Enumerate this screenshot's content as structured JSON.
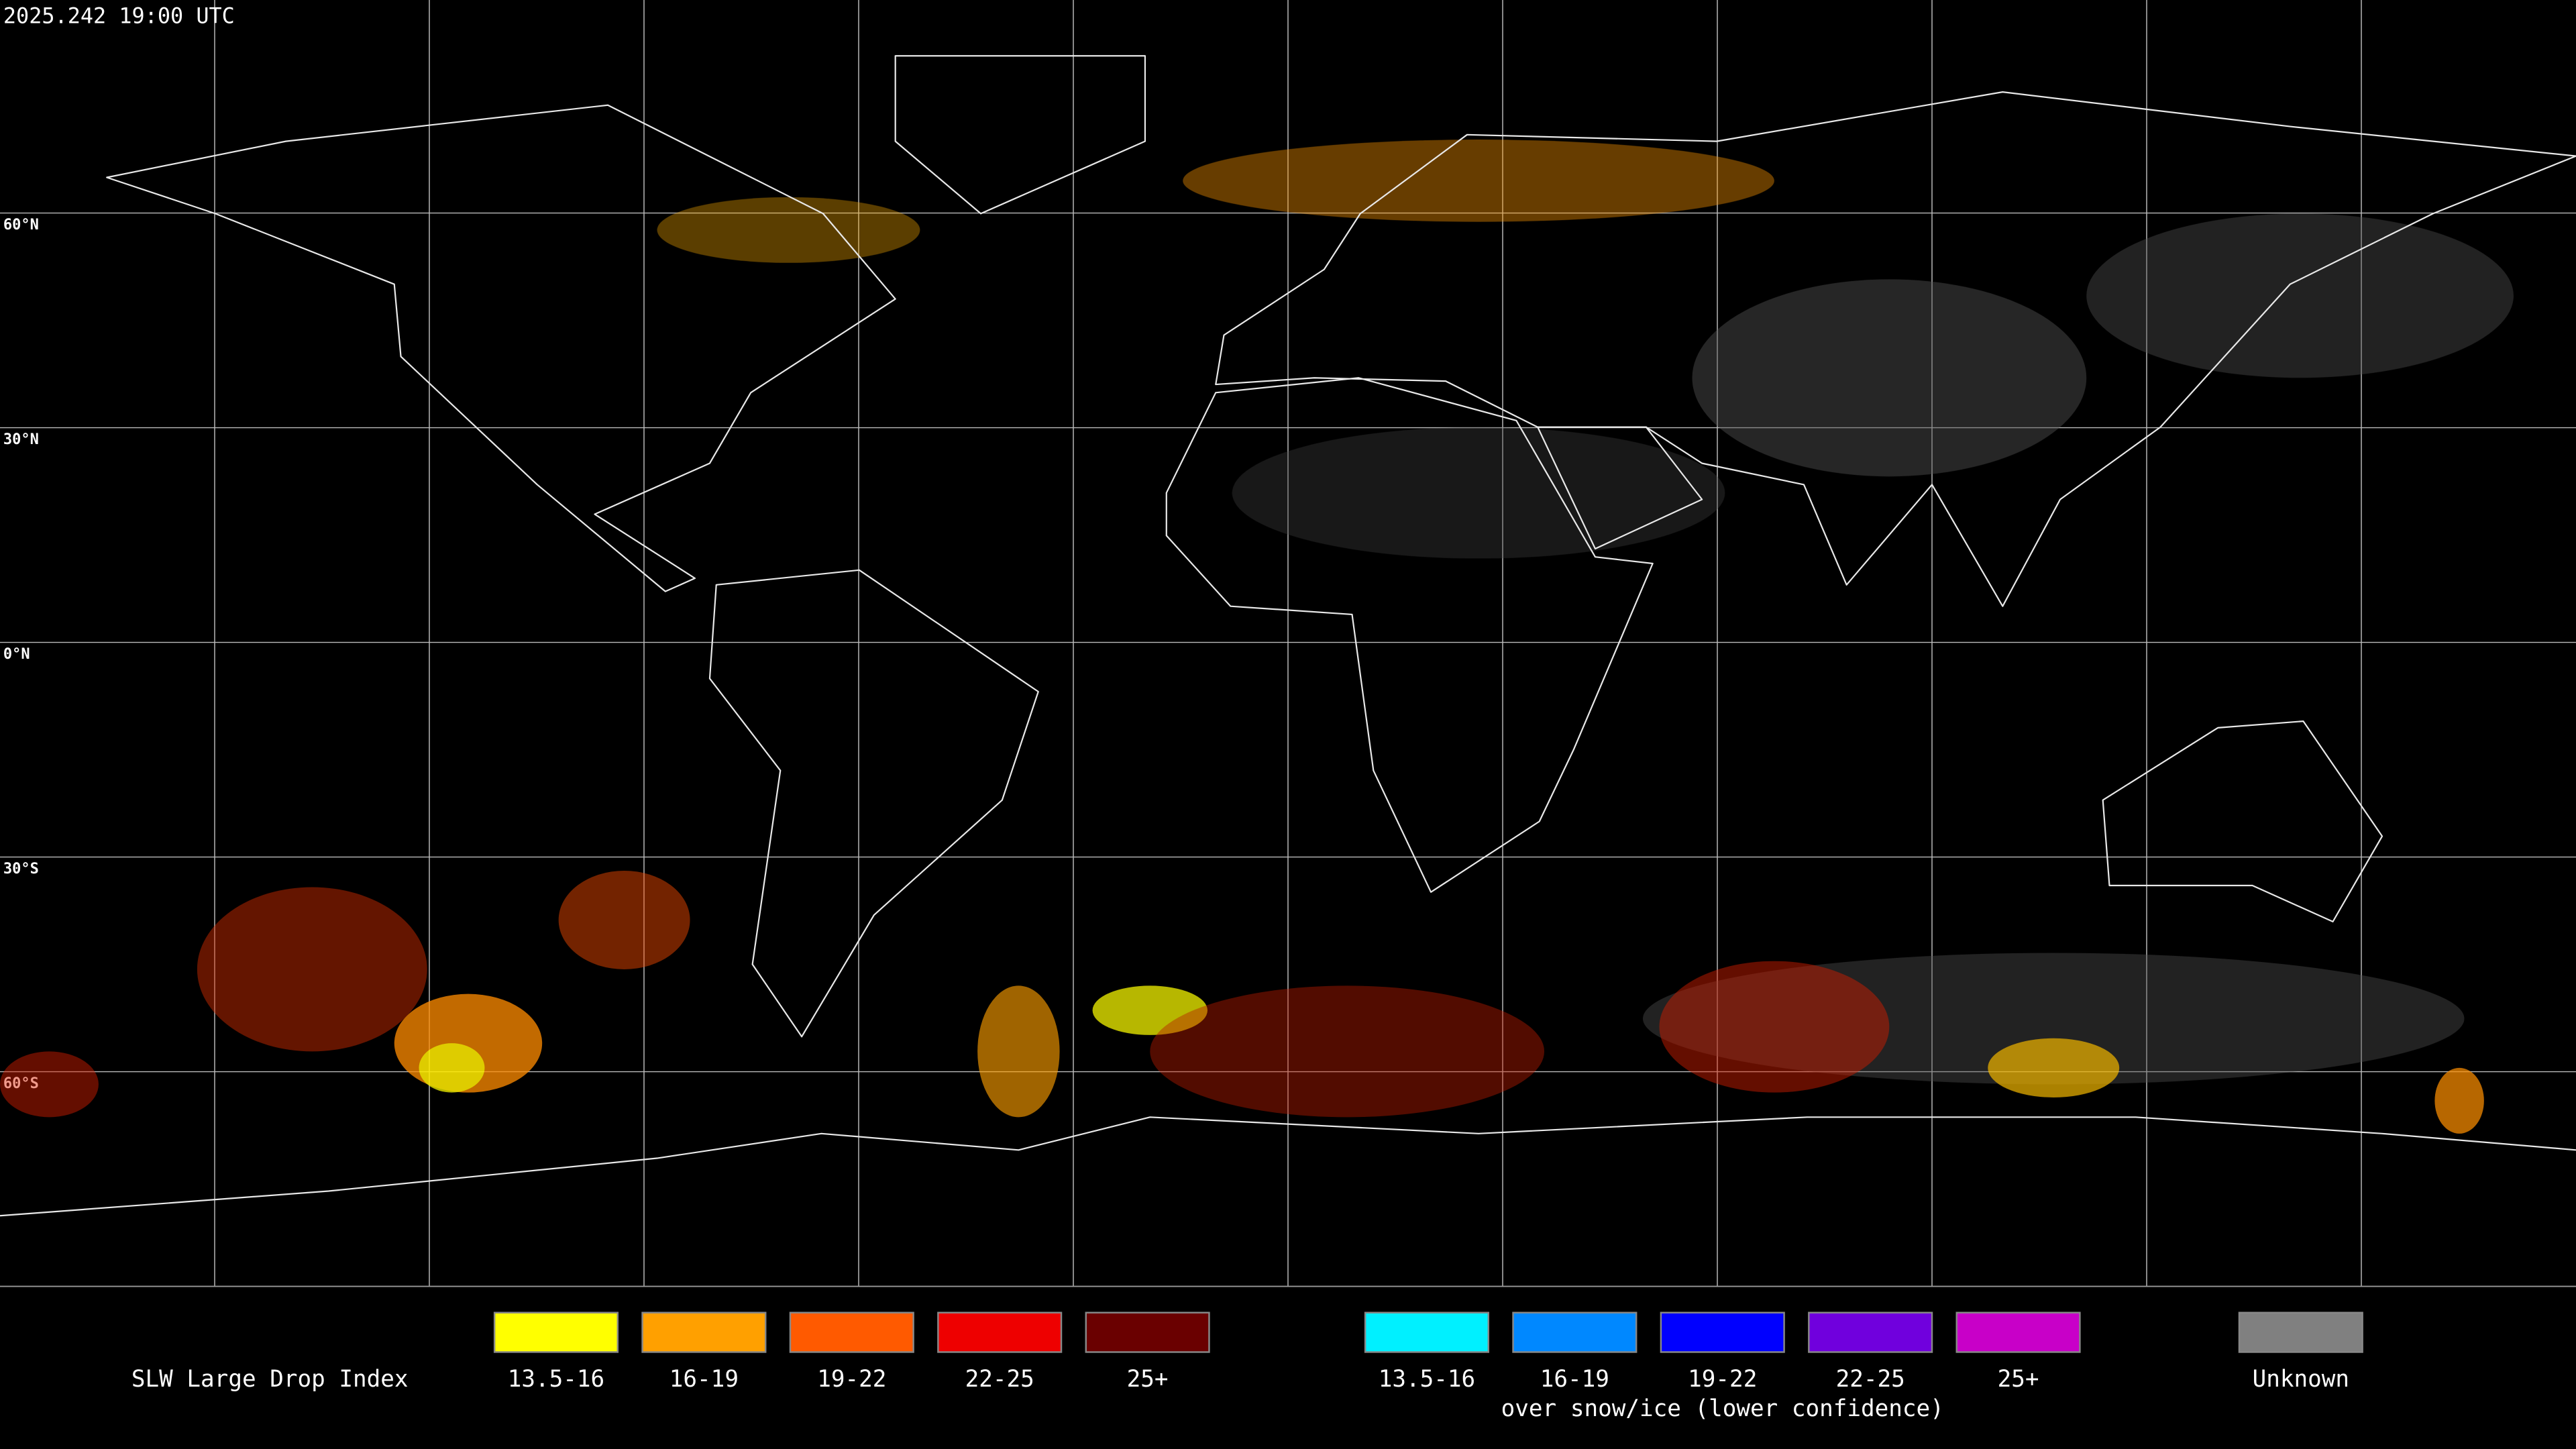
{
  "header": {
    "timestamp": "2025.242 19:00 UTC"
  },
  "map": {
    "latitude_labels": [
      "60°N",
      "30°N",
      "0°N",
      "30°S",
      "60°S"
    ]
  },
  "legend": {
    "title": "SLW Large Drop Index",
    "groups": [
      {
        "items": [
          {
            "label": "13.5-16",
            "color": "#ffff00"
          },
          {
            "label": "16-19",
            "color": "#ffa000"
          },
          {
            "label": "19-22",
            "color": "#ff5a00"
          },
          {
            "label": "22-25",
            "color": "#ee0000"
          },
          {
            "label": "25+",
            "color": "#6a0000"
          }
        ]
      },
      {
        "caption": "over snow/ice (lower confidence)",
        "items": [
          {
            "label": "13.5-16",
            "color": "#00f0ff"
          },
          {
            "label": "16-19",
            "color": "#0088ff"
          },
          {
            "label": "19-22",
            "color": "#0000ff"
          },
          {
            "label": "22-25",
            "color": "#7000dd"
          },
          {
            "label": "25+",
            "color": "#c800c8"
          }
        ]
      },
      {
        "items": [
          {
            "label": "Unknown",
            "color": "#808080"
          }
        ]
      }
    ]
  }
}
